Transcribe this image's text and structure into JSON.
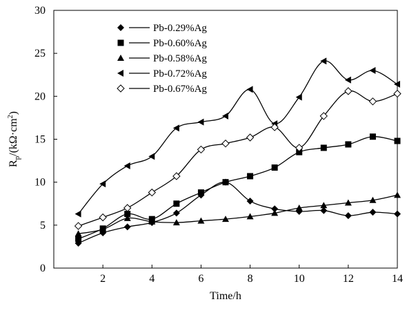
{
  "chart_data": {
    "type": "line",
    "title": "",
    "xlabel": "Time/h",
    "ylabel_main": "R",
    "ylabel_sub": "p",
    "ylabel_rest": "/(kΩ·cm",
    "ylabel_sup": "2",
    "ylabel_end": ")",
    "xlim": [
      0,
      14
    ],
    "ylim": [
      0,
      30
    ],
    "xticks": [
      2,
      4,
      6,
      8,
      10,
      12,
      14
    ],
    "xtick_labels": [
      "2",
      "4",
      "6",
      "8",
      "10",
      "12",
      "14"
    ],
    "yticks": [
      0,
      5,
      10,
      15,
      20,
      25,
      30
    ],
    "ytick_labels": [
      "0",
      "5",
      "10",
      "15",
      "20",
      "25",
      "30"
    ],
    "grid": false,
    "legend_position": "top-left",
    "x": [
      1,
      2,
      3,
      4,
      5,
      6,
      7,
      8,
      9,
      10,
      11,
      12,
      13,
      14
    ],
    "series": [
      {
        "name": "Pb-0.29%Ag",
        "marker": "diamond",
        "values": [
          2.9,
          4.1,
          4.8,
          5.3,
          6.4,
          8.5,
          10.0,
          7.8,
          6.9,
          6.6,
          6.7,
          6.1,
          6.5,
          6.3
        ]
      },
      {
        "name": "Pb-0.60%Ag",
        "marker": "square",
        "values": [
          3.4,
          4.6,
          6.3,
          5.7,
          7.5,
          8.8,
          10.0,
          10.7,
          11.7,
          13.5,
          14.0,
          14.4,
          15.3,
          14.8
        ]
      },
      {
        "name": "Pb-0.58%Ag",
        "marker": "triangle",
        "values": [
          4.0,
          4.5,
          5.8,
          5.4,
          5.3,
          5.5,
          5.7,
          6.0,
          6.4,
          7.0,
          7.3,
          7.6,
          7.9,
          8.5
        ]
      },
      {
        "name": "Pb-0.72%Ag",
        "marker": "triangle-left",
        "values": [
          6.3,
          9.8,
          11.9,
          13.0,
          16.3,
          17.0,
          17.7,
          20.8,
          16.8,
          19.9,
          24.1,
          21.9,
          23.0,
          21.4
        ]
      },
      {
        "name": "Pb-0.67%Ag",
        "marker": "diamond-open",
        "values": [
          4.9,
          5.9,
          7.0,
          8.8,
          10.7,
          13.8,
          14.5,
          15.2,
          16.4,
          14.0,
          17.7,
          20.6,
          19.4,
          20.3
        ]
      }
    ]
  }
}
